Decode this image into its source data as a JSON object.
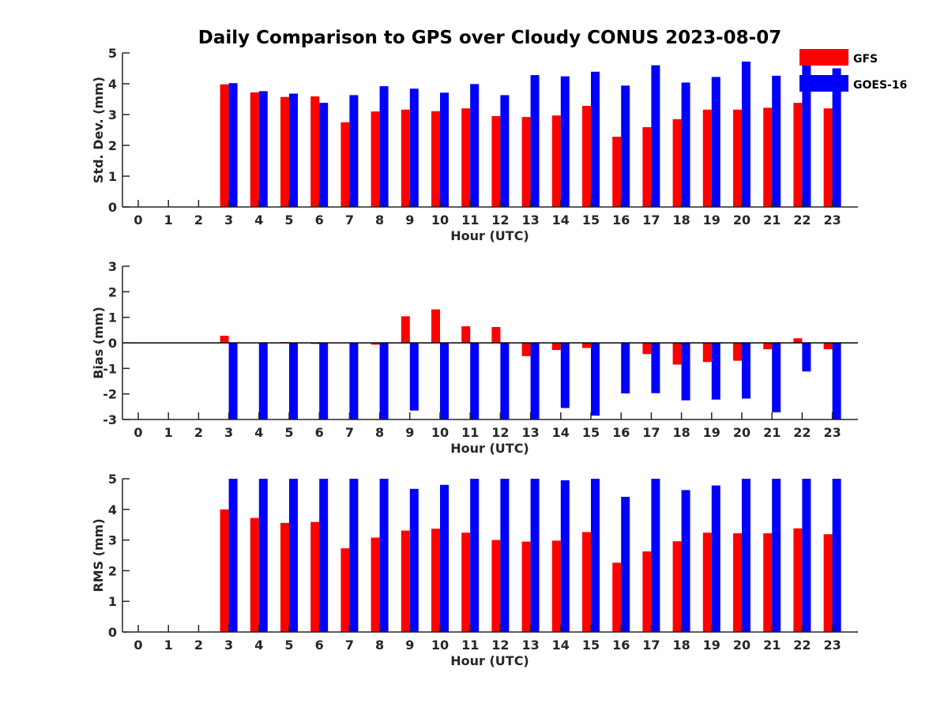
{
  "chart_data": {
    "title": "Daily Comparison to GPS over Cloudy CONUS 2023-08-07",
    "legend": {
      "placement": "top-right",
      "entries": [
        {
          "name": "GFS",
          "color": "#ff0000"
        },
        {
          "name": "GOES-16",
          "color": "#0000ff"
        }
      ]
    },
    "categories": [
      "0",
      "1",
      "2",
      "3",
      "4",
      "5",
      "6",
      "7",
      "8",
      "9",
      "10",
      "11",
      "12",
      "13",
      "14",
      "15",
      "16",
      "17",
      "18",
      "19",
      "20",
      "21",
      "22",
      "23"
    ],
    "panels": [
      {
        "type": "bar",
        "ylabel": "Std. Dev. (mm)",
        "xlabel": "Hour (UTC)",
        "ylim": [
          0,
          5
        ],
        "yticks": [
          "0",
          "1",
          "2",
          "3",
          "4",
          "5"
        ],
        "series": [
          {
            "name": "GFS",
            "values": [
              null,
              null,
              null,
              3.98,
              3.72,
              3.57,
              3.59,
              2.75,
              3.1,
              3.16,
              3.11,
              3.2,
              2.95,
              2.92,
              2.97,
              3.28,
              2.28,
              2.59,
              2.85,
              3.16,
              3.16,
              3.22,
              3.38,
              3.2
            ]
          },
          {
            "name": "GOES-16",
            "values": [
              null,
              null,
              null,
              4.02,
              3.76,
              3.68,
              3.38,
              3.63,
              3.92,
              3.84,
              3.71,
              3.99,
              3.63,
              4.28,
              4.24,
              4.39,
              3.94,
              4.6,
              4.04,
              4.22,
              4.72,
              4.26,
              5.0,
              4.5
            ]
          }
        ]
      },
      {
        "type": "bar",
        "ylabel": "Bias (mm)",
        "xlabel": "Hour (UTC)",
        "ylim": [
          -3,
          3
        ],
        "yticks": [
          "-3",
          "-2",
          "-1",
          "0",
          "1",
          "2",
          "3"
        ],
        "series": [
          {
            "name": "GFS",
            "values": [
              null,
              null,
              null,
              0.28,
              0.0,
              0.03,
              -0.04,
              0.0,
              -0.07,
              1.04,
              1.31,
              0.65,
              0.62,
              -0.52,
              -0.28,
              -0.2,
              0.0,
              -0.44,
              -0.85,
              -0.75,
              -0.7,
              -0.25,
              0.18,
              -0.25
            ]
          },
          {
            "name": "GOES-16",
            "values": [
              null,
              null,
              null,
              -3.0,
              -3.0,
              -3.0,
              -3.0,
              -3.0,
              -3.0,
              -2.65,
              -3.0,
              -3.0,
              -3.0,
              -3.0,
              -2.55,
              -2.85,
              -1.98,
              -1.97,
              -2.25,
              -2.22,
              -2.18,
              -2.72,
              -1.12,
              -3.0
            ]
          }
        ]
      },
      {
        "type": "bar",
        "ylabel": "RMS (mm)",
        "xlabel": "Hour (UTC)",
        "ylim": [
          0,
          5
        ],
        "yticks": [
          "0",
          "1",
          "2",
          "3",
          "4",
          "5"
        ],
        "series": [
          {
            "name": "GFS",
            "values": [
              null,
              null,
              null,
              4.0,
              3.72,
              3.56,
              3.59,
              2.73,
              3.08,
              3.31,
              3.37,
              3.24,
              3.0,
              2.95,
              2.98,
              3.26,
              2.26,
              2.63,
              2.96,
              3.24,
              3.22,
              3.22,
              3.38,
              3.19
            ]
          },
          {
            "name": "GOES-16",
            "values": [
              null,
              null,
              null,
              5.0,
              5.0,
              5.0,
              5.0,
              5.0,
              5.0,
              4.67,
              4.8,
              5.0,
              5.0,
              5.0,
              4.95,
              5.0,
              4.41,
              5.0,
              4.63,
              4.78,
              5.0,
              5.0,
              5.0,
              5.0
            ]
          }
        ]
      }
    ]
  }
}
